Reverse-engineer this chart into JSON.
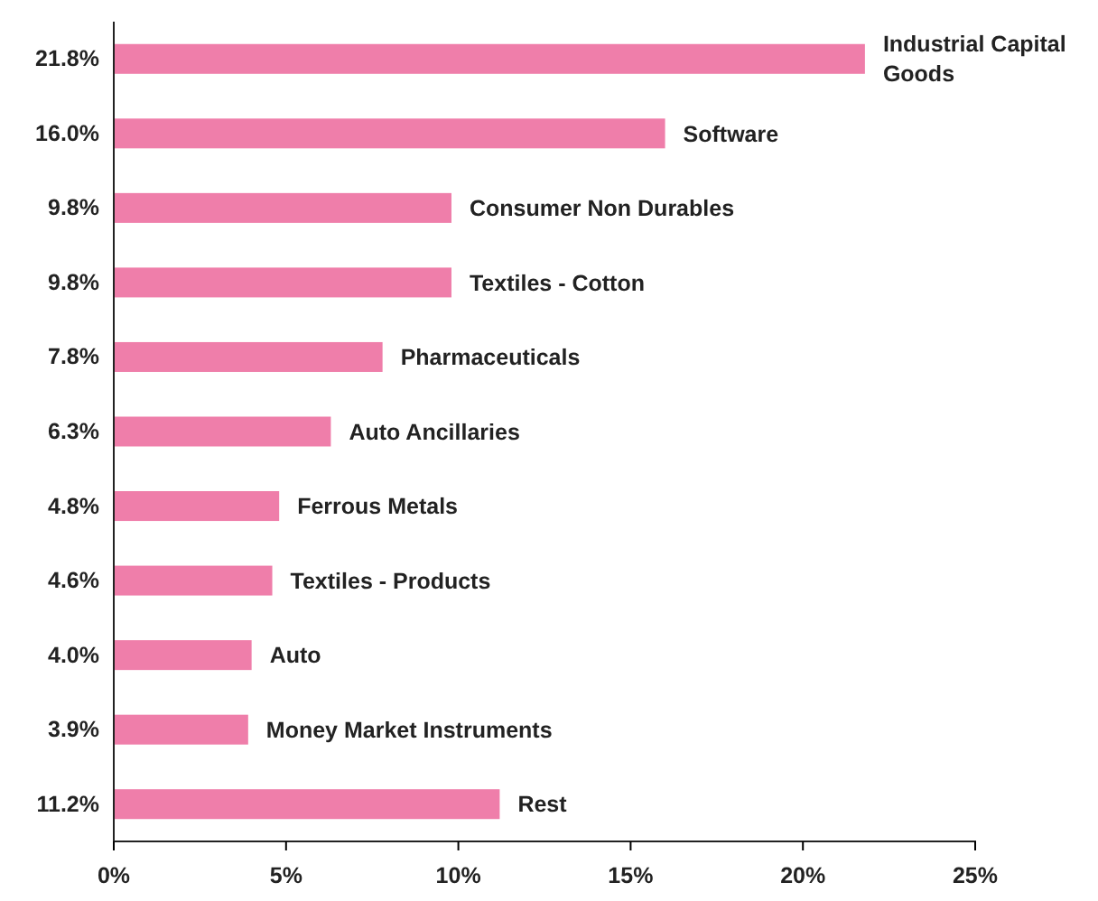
{
  "chart_data": {
    "type": "bar",
    "orientation": "horizontal",
    "categories": [
      "Industrial Capital Goods",
      "Software",
      "Consumer Non Durables",
      "Textiles - Cotton",
      "Pharmaceuticals",
      "Auto Ancillaries",
      "Ferrous Metals",
      "Textiles - Products",
      "Auto",
      "Money Market Instruments",
      "Rest"
    ],
    "values": [
      21.8,
      16.0,
      9.8,
      9.8,
      7.8,
      6.3,
      4.8,
      4.6,
      4.0,
      3.9,
      11.2
    ],
    "value_labels": [
      "21.8%",
      "16.0%",
      "9.8%",
      "9.8%",
      "7.8%",
      "6.3%",
      "4.8%",
      "4.6%",
      "4.0%",
      "3.9%",
      "11.2%"
    ],
    "color": "#ef7eaa",
    "xlim": [
      0,
      25
    ],
    "xticks": [
      {
        "value": 0,
        "label": "0%"
      },
      {
        "value": 5,
        "label": "5%"
      },
      {
        "value": 10,
        "label": "10%"
      },
      {
        "value": 15,
        "label": "15%"
      },
      {
        "value": 20,
        "label": "20%"
      },
      {
        "value": 25,
        "label": "25%"
      }
    ],
    "grid": false
  }
}
